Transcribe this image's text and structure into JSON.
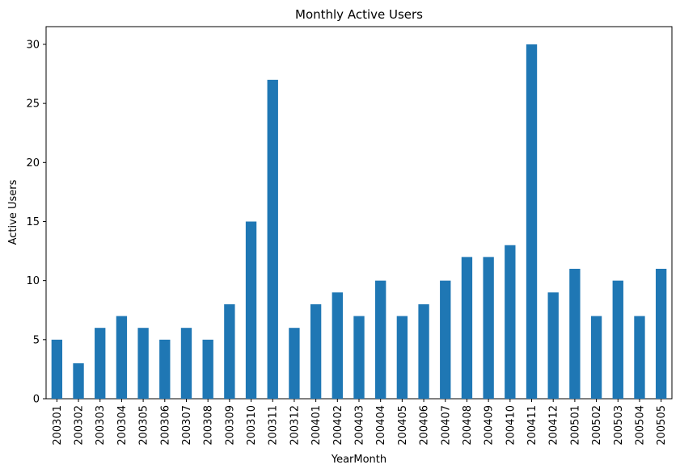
{
  "colors": {
    "bar": "#1f77b4",
    "axis": "#000000",
    "background": "#ffffff"
  },
  "chart_data": {
    "type": "bar",
    "title": "Monthly Active Users",
    "xlabel": "YearMonth",
    "ylabel": "Active Users",
    "ylim": [
      0,
      31.5
    ],
    "yticks": [
      0,
      5,
      10,
      15,
      20,
      25,
      30
    ],
    "grid": false,
    "legend": "none",
    "categories": [
      "200301",
      "200302",
      "200303",
      "200304",
      "200305",
      "200306",
      "200307",
      "200308",
      "200309",
      "200310",
      "200311",
      "200312",
      "200401",
      "200402",
      "200403",
      "200404",
      "200405",
      "200406",
      "200407",
      "200408",
      "200409",
      "200410",
      "200411",
      "200412",
      "200501",
      "200502",
      "200503",
      "200504",
      "200505"
    ],
    "values": [
      5,
      3,
      6,
      7,
      6,
      5,
      6,
      5,
      8,
      15,
      27,
      6,
      8,
      9,
      7,
      10,
      7,
      8,
      10,
      12,
      12,
      13,
      30,
      9,
      11,
      7,
      10,
      7,
      11
    ]
  }
}
